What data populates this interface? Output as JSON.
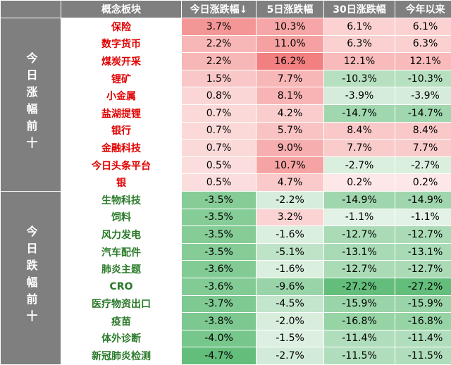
{
  "table": {
    "header": [
      "概念板块",
      "今日涨跌幅↓",
      "5日涨跌幅",
      "30日涨跌幅",
      "今年以来"
    ],
    "groups": [
      {
        "label": "今日涨幅前十",
        "rows": [
          [
            "保险",
            "3.7%",
            "10.3%",
            "6.1%",
            "6.1%"
          ],
          [
            "数字货币",
            "2.2%",
            "11.0%",
            "6.3%",
            "6.3%"
          ],
          [
            "煤炭开采",
            "2.2%",
            "16.2%",
            "12.1%",
            "12.1%"
          ],
          [
            "锂矿",
            "1.5%",
            "7.7%",
            "-10.3%",
            "-10.3%"
          ],
          [
            "小金属",
            "0.8%",
            "8.1%",
            "-3.9%",
            "-3.9%"
          ],
          [
            "盐湖提锂",
            "0.7%",
            "4.2%",
            "-14.7%",
            "-14.7%"
          ],
          [
            "银行",
            "0.7%",
            "5.7%",
            "8.4%",
            "8.4%"
          ],
          [
            "金融科技",
            "0.7%",
            "9.0%",
            "7.7%",
            "7.7%"
          ],
          [
            "今日头条平台",
            "0.5%",
            "10.7%",
            "-2.7%",
            "-2.7%"
          ],
          [
            "银",
            "0.5%",
            "4.7%",
            "0.2%",
            "0.2%"
          ]
        ]
      },
      {
        "label": "今日跌幅前十",
        "rows": [
          [
            "生物科技",
            "-3.5%",
            "-2.2%",
            "-14.9%",
            "-14.9%"
          ],
          [
            "饲料",
            "-3.5%",
            "3.2%",
            "-1.1%",
            "-1.1%"
          ],
          [
            "风力发电",
            "-3.5%",
            "-1.6%",
            "-12.7%",
            "-12.7%"
          ],
          [
            "汽车配件",
            "-3.5%",
            "-5.1%",
            "-13.1%",
            "-13.1%"
          ],
          [
            "肺炎主题",
            "-3.6%",
            "-1.6%",
            "-12.7%",
            "-12.7%"
          ],
          [
            "CRO",
            "-3.6%",
            "-9.6%",
            "-27.2%",
            "-27.2%"
          ],
          [
            "医疗物资出口",
            "-3.7%",
            "-4.5%",
            "-15.9%",
            "-15.9%"
          ],
          [
            "疫苗",
            "-3.8%",
            "-2.0%",
            "-16.8%",
            "-16.8%"
          ],
          [
            "体外诊断",
            "-4.0%",
            "-1.5%",
            "-11.4%",
            "-11.4%"
          ],
          [
            "新冠肺炎检测",
            "-4.7%",
            "-2.7%",
            "-11.5%",
            "-11.5%"
          ]
        ]
      }
    ]
  }
}
